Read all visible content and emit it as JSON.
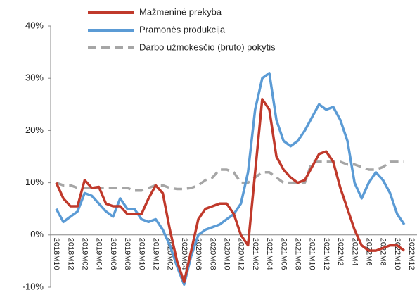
{
  "chart_data": {
    "type": "line",
    "categories": [
      "2018M10",
      null,
      "2018M12",
      null,
      "2019M02",
      null,
      "2019M04",
      null,
      "2019M06",
      null,
      "2019M08",
      null,
      "2019M10",
      null,
      "2019M12",
      null,
      "2020M02",
      null,
      "2020M04",
      null,
      "2020M06",
      null,
      "2020M08",
      null,
      "2020M10",
      null,
      "2020M12",
      null,
      "2021M02",
      null,
      "2021M04",
      null,
      "2021M06",
      null,
      "2021M08",
      null,
      "2021M10",
      null,
      "2021M12",
      null,
      "2022M2",
      null,
      "2022M4",
      null,
      "2022M6",
      null,
      "2022M8",
      null,
      "2022M10",
      null,
      "2022M12"
    ],
    "series": [
      {
        "name": "Mažmeninė prekyba",
        "color": "#c0392b",
        "dash": false,
        "values": [
          10,
          7,
          5.5,
          5.5,
          10.5,
          9,
          9.2,
          6,
          5.5,
          5.5,
          4,
          4,
          4,
          7,
          9.5,
          8,
          1,
          -5,
          -9,
          -3,
          3,
          5,
          5.5,
          6,
          6,
          4,
          0,
          -2,
          12,
          26,
          24,
          15,
          12.5,
          11,
          10,
          10.5,
          13,
          15.5,
          16,
          14,
          9,
          5,
          1,
          -2,
          -3,
          -3,
          -2.5,
          -2,
          -2,
          -3,
          null
        ]
      },
      {
        "name": "Pramonės produkcija",
        "color": "#5b9bd5",
        "dash": false,
        "values": [
          5,
          2.5,
          3.5,
          4.5,
          8,
          7.5,
          6,
          4.5,
          3.5,
          7,
          5,
          5,
          3,
          2.5,
          3,
          1,
          -2,
          -6,
          -9.5,
          -4,
          0,
          1,
          1.5,
          2,
          3,
          4,
          6,
          12,
          24,
          30,
          31,
          22,
          18,
          17,
          18,
          20,
          22.5,
          25,
          24,
          24.5,
          22,
          18,
          10,
          7,
          10,
          12,
          10.5,
          8,
          4,
          2,
          null
        ]
      },
      {
        "name": "Darbo užmokesčio (bruto) pokytis",
        "color": "#a6a6a6",
        "dash": true,
        "values": [
          10,
          9.5,
          9.5,
          9,
          9,
          9,
          9,
          9,
          9,
          9,
          9,
          8.5,
          8.5,
          9,
          9.5,
          9.5,
          9,
          8.8,
          8.8,
          9,
          9.5,
          10.5,
          11,
          12.5,
          12.5,
          12,
          10,
          10,
          11,
          12,
          12,
          11,
          10,
          10,
          10,
          10,
          14,
          14,
          14,
          14,
          14,
          13.5,
          13.5,
          13,
          12.5,
          12.5,
          13,
          14,
          14,
          14,
          null
        ]
      }
    ],
    "ylim": [
      -10,
      40
    ],
    "yticks": [
      {
        "value": -10,
        "label": "-10%"
      },
      {
        "value": 0,
        "label": "0%"
      },
      {
        "value": 10,
        "label": "10%"
      },
      {
        "value": 20,
        "label": "20%"
      },
      {
        "value": 30,
        "label": "30%"
      },
      {
        "value": 40,
        "label": "40%"
      }
    ],
    "legend": "top"
  }
}
